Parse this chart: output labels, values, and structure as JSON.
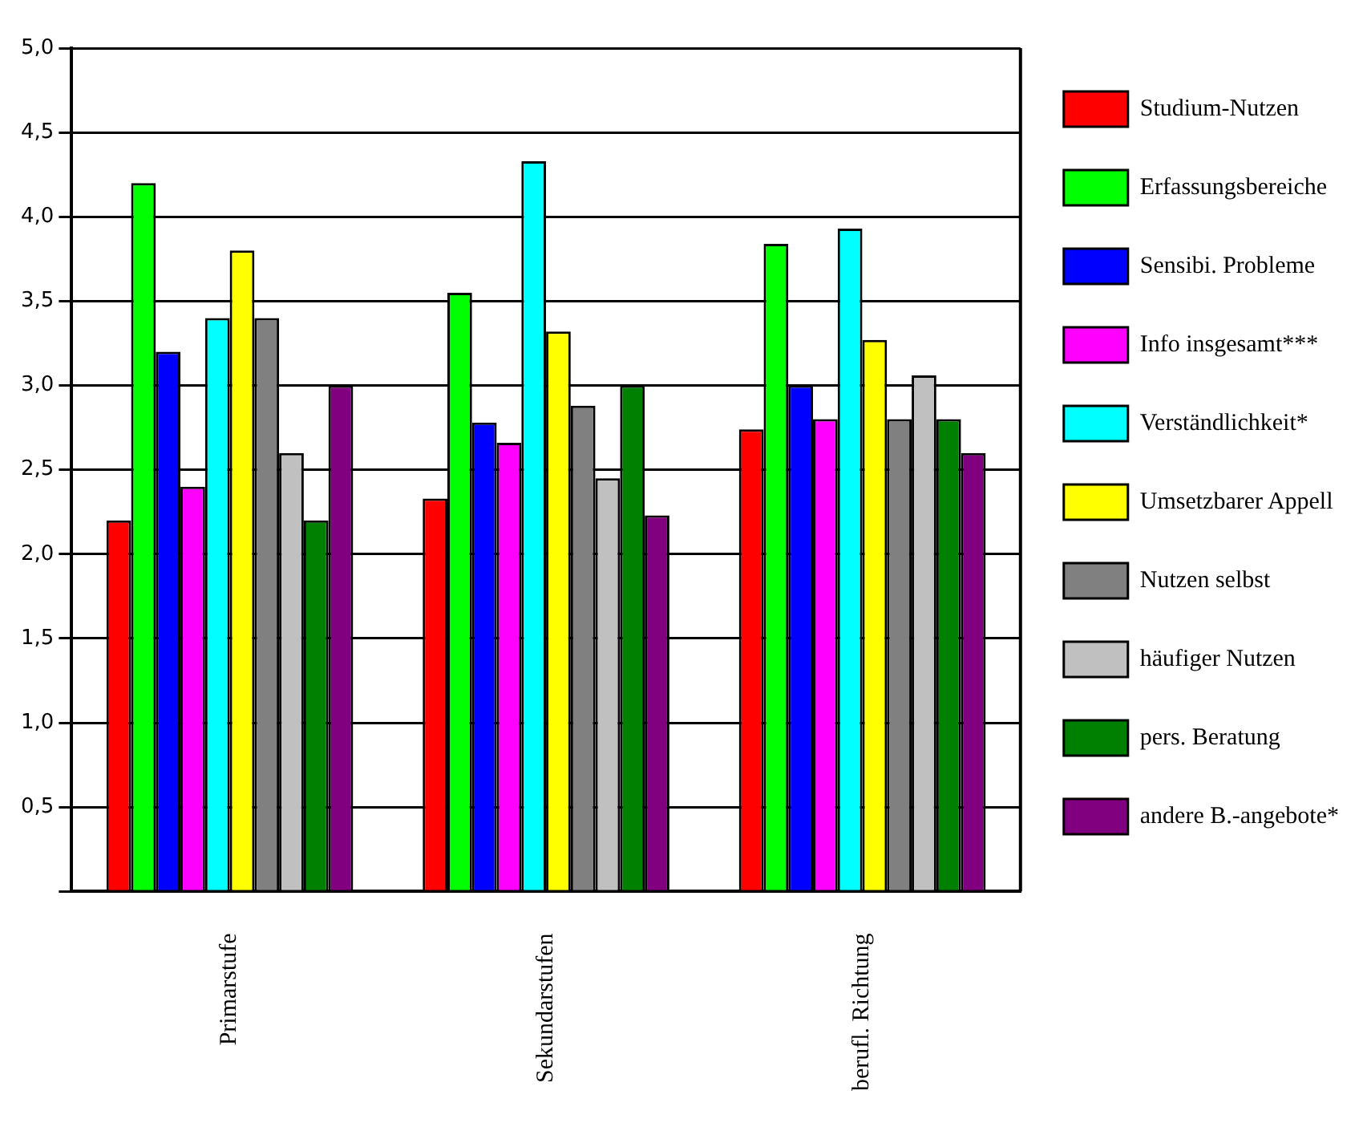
{
  "chart_data": {
    "type": "bar",
    "categories": [
      "Primarstufe",
      "Sekundarstufen",
      "berufl. Richtung"
    ],
    "series": [
      {
        "name": "Studium-Nutzen",
        "color": "#ff0000",
        "values": [
          2.2,
          2.33,
          2.74
        ]
      },
      {
        "name": "Erfassungsbereiche",
        "color": "#00ff00",
        "values": [
          4.2,
          3.55,
          3.84
        ]
      },
      {
        "name": "Sensibi. Probleme",
        "color": "#0000ff",
        "values": [
          3.2,
          2.78,
          3.0
        ]
      },
      {
        "name": "Info insgesamt***",
        "color": "#ff00ff",
        "values": [
          2.4,
          2.66,
          2.8
        ]
      },
      {
        "name": "Verständlichkeit*",
        "color": "#00ffff",
        "values": [
          3.4,
          4.33,
          3.93
        ]
      },
      {
        "name": "Umsetzbarer Appell",
        "color": "#ffff00",
        "values": [
          3.8,
          3.32,
          3.27
        ]
      },
      {
        "name": "Nutzen selbst",
        "color": "#808080",
        "values": [
          3.4,
          2.88,
          2.8
        ]
      },
      {
        "name": "häufiger Nutzen",
        "color": "#c0c0c0",
        "values": [
          2.6,
          2.45,
          3.06
        ]
      },
      {
        "name": "pers. Beratung",
        "color": "#008000",
        "values": [
          2.2,
          3.0,
          2.8
        ]
      },
      {
        "name": "andere B.-angebote*",
        "color": "#800080",
        "values": [
          3.0,
          2.23,
          2.6
        ]
      }
    ],
    "ylim": [
      0,
      5
    ],
    "yticks": [
      {
        "value": 0,
        "label": null
      },
      {
        "value": 0.5,
        "label": "0,5"
      },
      {
        "value": 1,
        "label": "1,0"
      },
      {
        "value": 1.5,
        "label": "1,5"
      },
      {
        "value": 2,
        "label": "2,0"
      },
      {
        "value": 2.5,
        "label": "2,5"
      },
      {
        "value": 3,
        "label": "3,0"
      },
      {
        "value": 3.5,
        "label": "3,5"
      },
      {
        "value": 4,
        "label": "4,0"
      },
      {
        "value": 4.5,
        "label": "4,5"
      },
      {
        "value": 5,
        "label": "5,0"
      }
    ],
    "grid": "y",
    "legend": "right"
  }
}
